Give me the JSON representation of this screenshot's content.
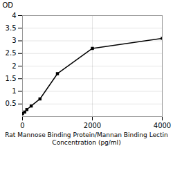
{
  "chart_data": {
    "type": "line",
    "x_label": "Rat Mannose Binding Protein/Mannan Binding Lectin\nConcentration (pg/ml)",
    "y_label": "OD",
    "x": [
      0,
      62.5,
      125,
      250,
      500,
      1000,
      2000,
      4000
    ],
    "values": [
      0.12,
      0.18,
      0.28,
      0.42,
      0.7,
      1.7,
      2.7,
      3.1
    ],
    "marker": "square",
    "xlim": [
      0,
      4000
    ],
    "ylim": [
      0,
      4
    ],
    "xticks": [
      0,
      2000,
      4000
    ],
    "yticks": [
      0.5,
      1,
      1.5,
      2,
      2.5,
      3,
      3.5,
      4
    ],
    "grid": true
  }
}
